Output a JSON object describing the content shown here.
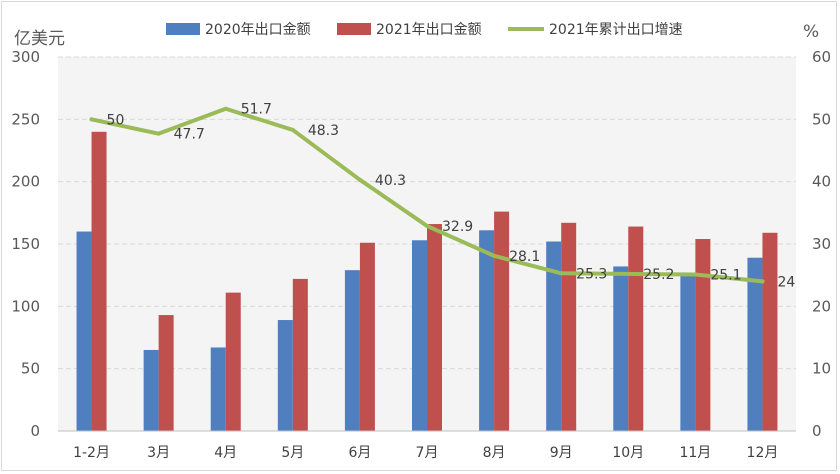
{
  "chart_data": {
    "type": "bar",
    "categories": [
      "1-2月",
      "3月",
      "4月",
      "5月",
      "6月",
      "7月",
      "8月",
      "9月",
      "10月",
      "11月",
      "12月"
    ],
    "series": [
      {
        "name": "2020年出口金额",
        "type": "bar",
        "axis": "left",
        "color": "#4f7fbf",
        "values": [
          160,
          65,
          67,
          89,
          129,
          153,
          161,
          152,
          132,
          126,
          139
        ]
      },
      {
        "name": "2021年出口金额",
        "type": "bar",
        "axis": "left",
        "color": "#c0504d",
        "values": [
          240,
          93,
          111,
          122,
          151,
          166,
          176,
          167,
          164,
          154,
          159
        ]
      },
      {
        "name": "2021年累计出口增速",
        "type": "line",
        "axis": "right",
        "color": "#9bbb59",
        "values": [
          50,
          47.7,
          51.7,
          48.3,
          40.3,
          32.9,
          28.1,
          25.3,
          25.2,
          25.1,
          24
        ],
        "labels": [
          "50",
          "47.7",
          "51.7",
          "48.3",
          "40.3",
          "32.9",
          "28.1",
          "25.3",
          "25.2",
          "25.1",
          "24"
        ]
      }
    ],
    "ylabel": "亿美元",
    "y2label": "%",
    "ylim": [
      0,
      300
    ],
    "y2lim": [
      0,
      60
    ],
    "yticks": [
      "0",
      "50",
      "100",
      "150",
      "200",
      "250",
      "300"
    ],
    "y2ticks": [
      "0",
      "10",
      "20",
      "30",
      "40",
      "50",
      "60"
    ],
    "legend_position": "top",
    "grid": true
  }
}
